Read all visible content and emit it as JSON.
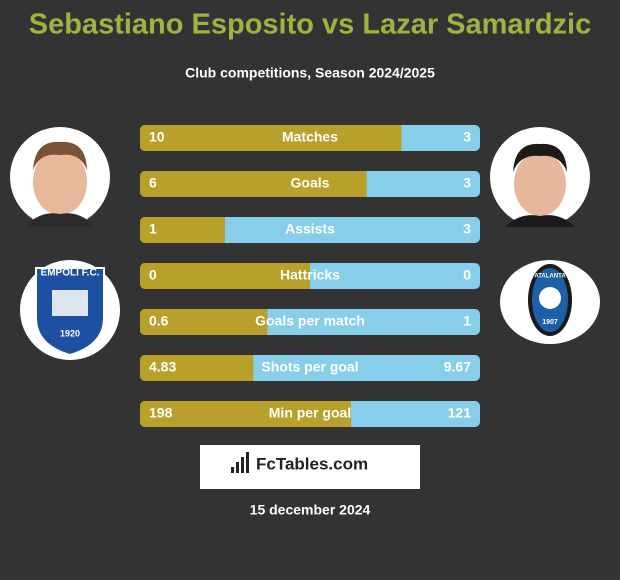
{
  "header": {
    "title": "Sebastiano Esposito vs Lazar Samardzic",
    "subtitle": "Club competitions, Season 2024/2025"
  },
  "badges": {
    "left": {
      "name": "EMPOLI F.C.",
      "year": "1920"
    },
    "right": {
      "name": "ATALANTA",
      "year": "1907"
    }
  },
  "rows": [
    {
      "label": "Matches",
      "left": 10,
      "right": 3
    },
    {
      "label": "Goals",
      "left": 6,
      "right": 3
    },
    {
      "label": "Assists",
      "left": 1,
      "right": 3
    },
    {
      "label": "Hattricks",
      "left": 0,
      "right": 0
    },
    {
      "label": "Goals per match",
      "left": 0.6,
      "right": 1
    },
    {
      "label": "Shots per goal",
      "left": 4.83,
      "right": 9.67
    },
    {
      "label": "Min per goal",
      "left": 198,
      "right": 121
    }
  ],
  "footer": {
    "brand": "FcTables.com",
    "date": "15 december 2024"
  }
}
